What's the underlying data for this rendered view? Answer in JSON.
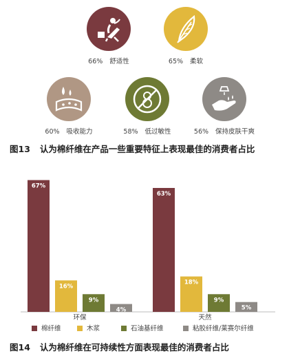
{
  "colors": {
    "maroon": "#7a3a3f",
    "gold": "#e2b83c",
    "olive": "#6e7a34",
    "gray": "#8e8a86",
    "tan": "#b09784"
  },
  "fig13": {
    "features": [
      {
        "pct": "66%",
        "label": "舒适性",
        "icon": "lounge-chair-icon",
        "color": "#7a3a3f"
      },
      {
        "pct": "65%",
        "label": "柔软",
        "icon": "feather-icon",
        "color": "#e2b83c"
      },
      {
        "pct": "60%",
        "label": "吸收能力",
        "icon": "sponge-droplet-icon",
        "color": "#b09784"
      },
      {
        "pct": "58%",
        "label": "低过敏性",
        "icon": "no-allergy-icon",
        "color": "#6e7a34"
      },
      {
        "pct": "56%",
        "label": "保持皮肤干爽",
        "icon": "hand-care-icon",
        "color": "#8e8a86"
      }
    ],
    "title_num": "图13",
    "title": "认为棉纤维在产品一些重要特征上表现最佳的消费者占比"
  },
  "chart_data": {
    "type": "bar",
    "categories": [
      "环保",
      "天然"
    ],
    "series": [
      {
        "name": "棉纤维",
        "values": [
          67,
          63
        ],
        "labels": [
          "67%",
          "63%"
        ],
        "color": "#7a3a3f"
      },
      {
        "name": "木浆",
        "values": [
          16,
          18
        ],
        "labels": [
          "16%",
          "18%"
        ],
        "color": "#e2b83c"
      },
      {
        "name": "石油基纤维",
        "values": [
          9,
          9
        ],
        "labels": [
          "9%",
          "9%"
        ],
        "color": "#6e7a34"
      },
      {
        "name": "粘胶纤维/莱赛尔纤维",
        "values": [
          4,
          5
        ],
        "labels": [
          "4%",
          "5%"
        ],
        "color": "#8e8a86"
      }
    ],
    "ylim": [
      0,
      70
    ],
    "legend_position": "bottom"
  },
  "fig14": {
    "title_num": "图14",
    "title": "认为棉纤维在可持续性方面表现最佳的消费者占比"
  }
}
